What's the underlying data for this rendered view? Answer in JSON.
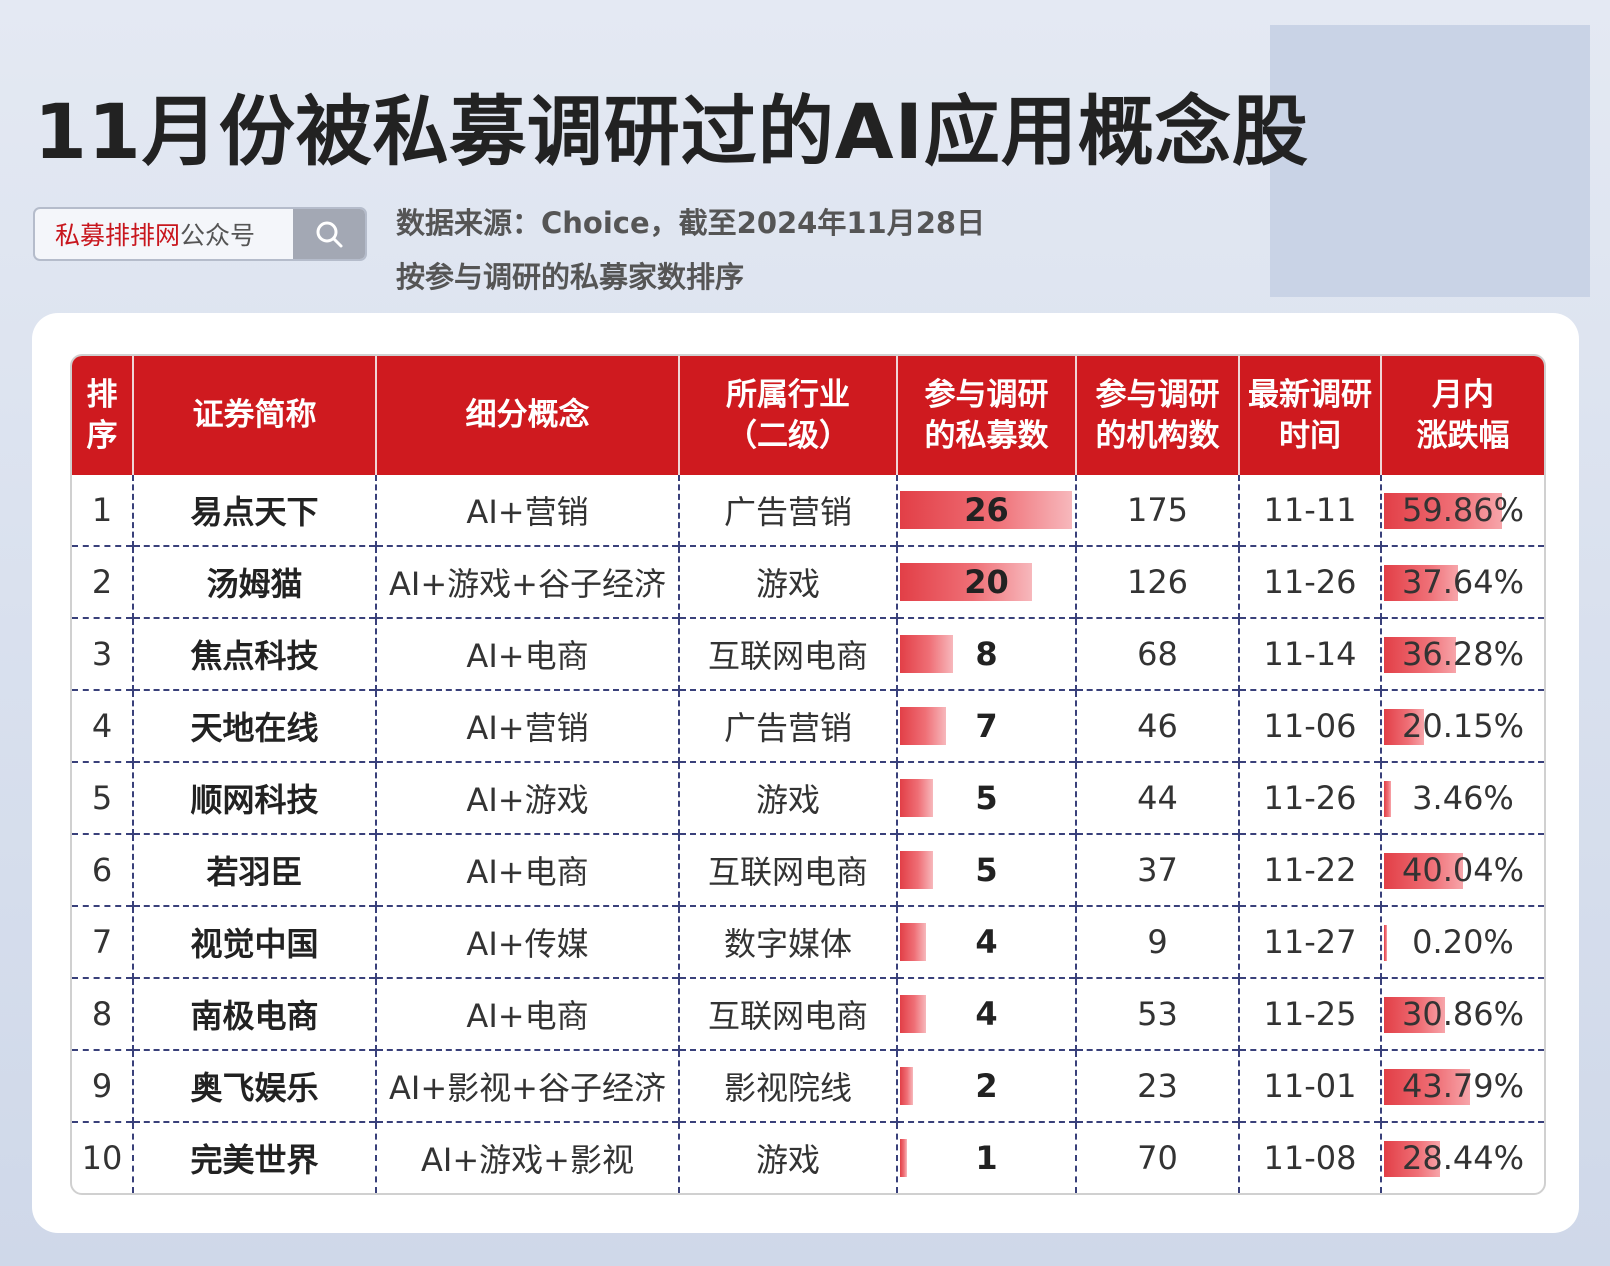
{
  "title": "11月份被私募调研过的AI应用概念股",
  "search": {
    "brand": "私募排排网",
    "suffix": "公众号",
    "icon": "search-icon"
  },
  "source_note": "数据来源：Choice，截至2024年11月28日",
  "sort_note": "按参与调研的私募家数排序",
  "colors": {
    "header_bg": "#cf1a1f",
    "bar": "#e23f47",
    "brand_red": "#c8161d"
  },
  "table": {
    "headers": [
      [
        "排",
        "序"
      ],
      [
        "证券简称"
      ],
      [
        "细分概念"
      ],
      [
        "所属行业",
        "（二级）"
      ],
      [
        "参与调研",
        "的私募数"
      ],
      [
        "参与调研",
        "的机构数"
      ],
      [
        "最新调研",
        "时间"
      ],
      [
        "月内",
        "涨跌幅"
      ]
    ],
    "max_private_funds": 26,
    "max_change_pct": 59.86,
    "rows": [
      {
        "rank": "1",
        "name": "易点天下",
        "concept": "AI+营销",
        "industry": "广告营销",
        "private_funds": 26,
        "institutions": "175",
        "date": "11-11",
        "change": "59.86%",
        "change_pct": 59.86
      },
      {
        "rank": "2",
        "name": "汤姆猫",
        "concept": "AI+游戏+谷子经济",
        "industry": "游戏",
        "private_funds": 20,
        "institutions": "126",
        "date": "11-26",
        "change": "37.64%",
        "change_pct": 37.64
      },
      {
        "rank": "3",
        "name": "焦点科技",
        "concept": "AI+电商",
        "industry": "互联网电商",
        "private_funds": 8,
        "institutions": "68",
        "date": "11-14",
        "change": "36.28%",
        "change_pct": 36.28
      },
      {
        "rank": "4",
        "name": "天地在线",
        "concept": "AI+营销",
        "industry": "广告营销",
        "private_funds": 7,
        "institutions": "46",
        "date": "11-06",
        "change": "20.15%",
        "change_pct": 20.15
      },
      {
        "rank": "5",
        "name": "顺网科技",
        "concept": "AI+游戏",
        "industry": "游戏",
        "private_funds": 5,
        "institutions": "44",
        "date": "11-26",
        "change": "3.46%",
        "change_pct": 3.46
      },
      {
        "rank": "6",
        "name": "若羽臣",
        "concept": "AI+电商",
        "industry": "互联网电商",
        "private_funds": 5,
        "institutions": "37",
        "date": "11-22",
        "change": "40.04%",
        "change_pct": 40.04
      },
      {
        "rank": "7",
        "name": "视觉中国",
        "concept": "AI+传媒",
        "industry": "数字媒体",
        "private_funds": 4,
        "institutions": "9",
        "date": "11-27",
        "change": "0.20%",
        "change_pct": 0.2
      },
      {
        "rank": "8",
        "name": "南极电商",
        "concept": "AI+电商",
        "industry": "互联网电商",
        "private_funds": 4,
        "institutions": "53",
        "date": "11-25",
        "change": "30.86%",
        "change_pct": 30.86
      },
      {
        "rank": "9",
        "name": "奥飞娱乐",
        "concept": "AI+影视+谷子经济",
        "industry": "影视院线",
        "private_funds": 2,
        "institutions": "23",
        "date": "11-01",
        "change": "43.79%",
        "change_pct": 43.79
      },
      {
        "rank": "10",
        "name": "完美世界",
        "concept": "AI+游戏+影视",
        "industry": "游戏",
        "private_funds": 1,
        "institutions": "70",
        "date": "11-08",
        "change": "28.44%",
        "change_pct": 28.44
      }
    ]
  }
}
